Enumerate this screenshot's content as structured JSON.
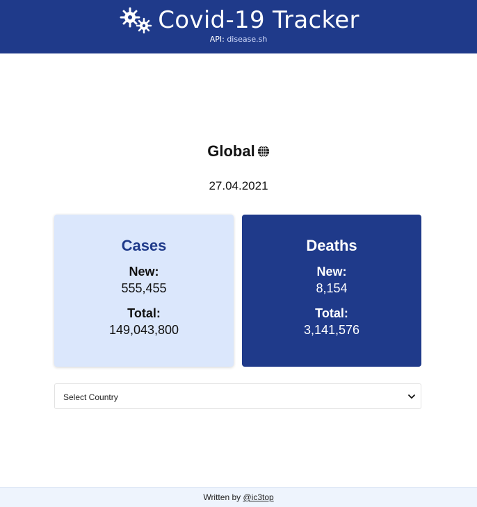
{
  "header": {
    "title": "Covid-19 Tracker",
    "api_prefix": "API:",
    "api_link": "disease.sh",
    "logo_icon": "virus-icon"
  },
  "region": {
    "title": "Global",
    "icon": "globe-icon"
  },
  "date": "27.04.2021",
  "cards": {
    "cases": {
      "title": "Cases",
      "new_label": "New:",
      "new_value": "555,455",
      "total_label": "Total:",
      "total_value": "149,043,800"
    },
    "deaths": {
      "title": "Deaths",
      "new_label": "New:",
      "new_value": "8,154",
      "total_label": "Total:",
      "total_value": "3,141,576"
    }
  },
  "country_select": {
    "selected": "Select Country"
  },
  "footer": {
    "prefix": "Written by",
    "author_link": "@ic3top"
  },
  "colors": {
    "brand": "#1f3a8a",
    "cases_bg": "#dbe7fc",
    "footer_bg": "#eef4fd"
  }
}
